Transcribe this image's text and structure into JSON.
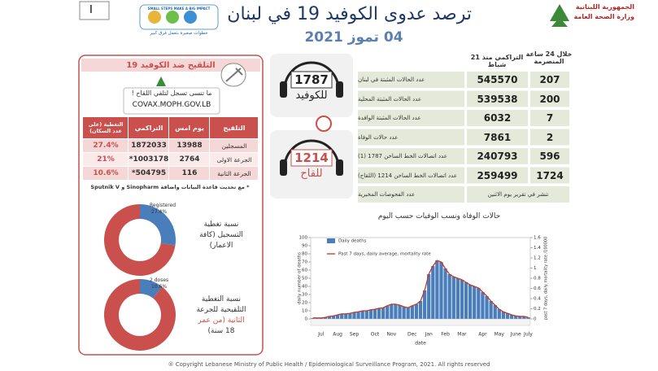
{
  "header": {
    "title": "ترصد عدوى الكوفيد 19 في لبنان",
    "date": "04 تموز 2021",
    "ministry": [
      "الجمهورية اللبنانية",
      "وزارة الصحة العامة"
    ],
    "campaign_slogan": "SMALL STEPS MAKE A BIG IMPACT",
    "campaign_arabic": "خطوات صغيرة بتعمل فرق كبير",
    "page_marker": "I"
  },
  "stats": {
    "headers": [
      "خلال 24 ساعة المنصرمة",
      "التراكمي منذ 21 شباط"
    ],
    "rows": [
      {
        "label": "عدد الحالات المثبتة في لبنان",
        "daily": 207,
        "cumulative": 545570
      },
      {
        "label": "عدد الحالات المثبتة المحلية",
        "daily": 200,
        "cumulative": 539538
      },
      {
        "label": "عدد الحالات المثبتة الوافدة",
        "daily": 7,
        "cumulative": 6032
      },
      {
        "label": "عدد حالات الوفاة",
        "daily": 2,
        "cumulative": 7861
      },
      {
        "label": "عدد اتصالات الخط الساخن 1787 (1)",
        "daily": 596,
        "cumulative": 240793
      },
      {
        "label": "عدد اتصالات الخط الساخن 1214 (اللقاح)",
        "daily": 1724,
        "cumulative": 259499
      }
    ],
    "tests": {
      "label": "عدد الفحوصات المخبرية",
      "note": "تنشر في تقرير يوم الاثنين"
    }
  },
  "hotlines": [
    {
      "number": "1787",
      "label": "للكوفيد"
    },
    {
      "number": "1214",
      "label": "للقاح"
    }
  ],
  "vaccination": {
    "title": "التلقيح ضد الكوفيد 19",
    "reminder": "ما تنسى تسجل لتلقي اللقاح !",
    "url": "COVAX.MOPH.GOV.LB",
    "columns": [
      "التلقيح",
      "يوم امس",
      "التراكمي",
      "التغطية (على عدد السكان)"
    ],
    "rows": [
      [
        "المسجلين",
        "13988",
        "1872033",
        "27.4%"
      ],
      [
        "الجرعة الاولى",
        "2764",
        "1003178*",
        "21%"
      ],
      [
        "الجرعة الثانية",
        "116",
        "504795*",
        "10.6%"
      ]
    ],
    "note": "* مع تحديث قاعدة البيانات واضافة Sinopharm و Sputnik V",
    "donuts": [
      {
        "label": "Registered",
        "value": 27.4,
        "value_label": "27.4%",
        "caption": [
          "نسبة تغطية",
          "التسجيل (كافة",
          "الاعمار)"
        ]
      },
      {
        "label": "2 doses",
        "value": 10.6,
        "value_label": "10.6%",
        "caption": [
          "نسبة التغطية",
          "التلقيحية للجرعة",
          "الثانية (من عمر",
          "18 سنة)"
        ]
      }
    ],
    "colors": [
      "#4a7ebb",
      "#c9504c"
    ]
  },
  "chart_data": {
    "type": "bar",
    "title": "حالات الوفاة ونسب الوفيات حسب اليوم",
    "ylabel": "daily number of deaths",
    "y2label": "past 7 days, daily mortality rate /100000",
    "xlabel": "date",
    "ylim": [
      0,
      100
    ],
    "yticks": [
      0,
      10,
      20,
      30,
      40,
      50,
      60,
      70,
      80,
      90,
      100
    ],
    "y2lim": [
      0,
      1.6
    ],
    "y2ticks": [
      0,
      0.2,
      0.4,
      0.6,
      0.8,
      1,
      1.2,
      1.4,
      1.6
    ],
    "legend": "top-left",
    "categories": [
      null,
      null,
      "Jul",
      null,
      null,
      null,
      "Aug",
      null,
      null,
      null,
      "Sep",
      null,
      null,
      null,
      null,
      "Oct",
      null,
      null,
      null,
      "Nov",
      null,
      null,
      null,
      null,
      "Dec",
      null,
      null,
      null,
      "Jan",
      null,
      null,
      null,
      "Feb",
      null,
      null,
      null,
      "Mar",
      null,
      null,
      null,
      null,
      "Apr",
      null,
      null,
      null,
      "May",
      null,
      null,
      null,
      "June",
      null,
      null,
      "July"
    ],
    "series": [
      {
        "name": "Daily deaths",
        "color": "#4a7ebb",
        "values": [
          1,
          1,
          1,
          2,
          3,
          4,
          5,
          6,
          6,
          7,
          8,
          9,
          10,
          10,
          11,
          12,
          13,
          14,
          16,
          18,
          18,
          17,
          15,
          14,
          16,
          18,
          22,
          35,
          55,
          65,
          72,
          70,
          62,
          55,
          52,
          50,
          48,
          45,
          42,
          40,
          38,
          33,
          28,
          22,
          17,
          12,
          9,
          7,
          5,
          4,
          3,
          3,
          2
        ]
      },
      {
        "name": "Past 7 days, daily average, mortality rate",
        "color": "#c0392b",
        "axis": "y2",
        "values": [
          0.02,
          0.02,
          0.02,
          0.03,
          0.05,
          0.06,
          0.08,
          0.1,
          0.1,
          0.11,
          0.13,
          0.14,
          0.16,
          0.16,
          0.18,
          0.19,
          0.21,
          0.22,
          0.26,
          0.29,
          0.29,
          0.27,
          0.24,
          0.22,
          0.26,
          0.29,
          0.35,
          0.56,
          0.88,
          1.04,
          1.15,
          1.12,
          0.99,
          0.88,
          0.83,
          0.8,
          0.77,
          0.72,
          0.67,
          0.64,
          0.61,
          0.53,
          0.45,
          0.35,
          0.27,
          0.19,
          0.14,
          0.11,
          0.08,
          0.06,
          0.05,
          0.05,
          0.03
        ]
      }
    ]
  },
  "footer": "® Copyright Lebanese Ministry of Public Health / Epidemiological Surveillance Program, 2021. All rights reserved"
}
